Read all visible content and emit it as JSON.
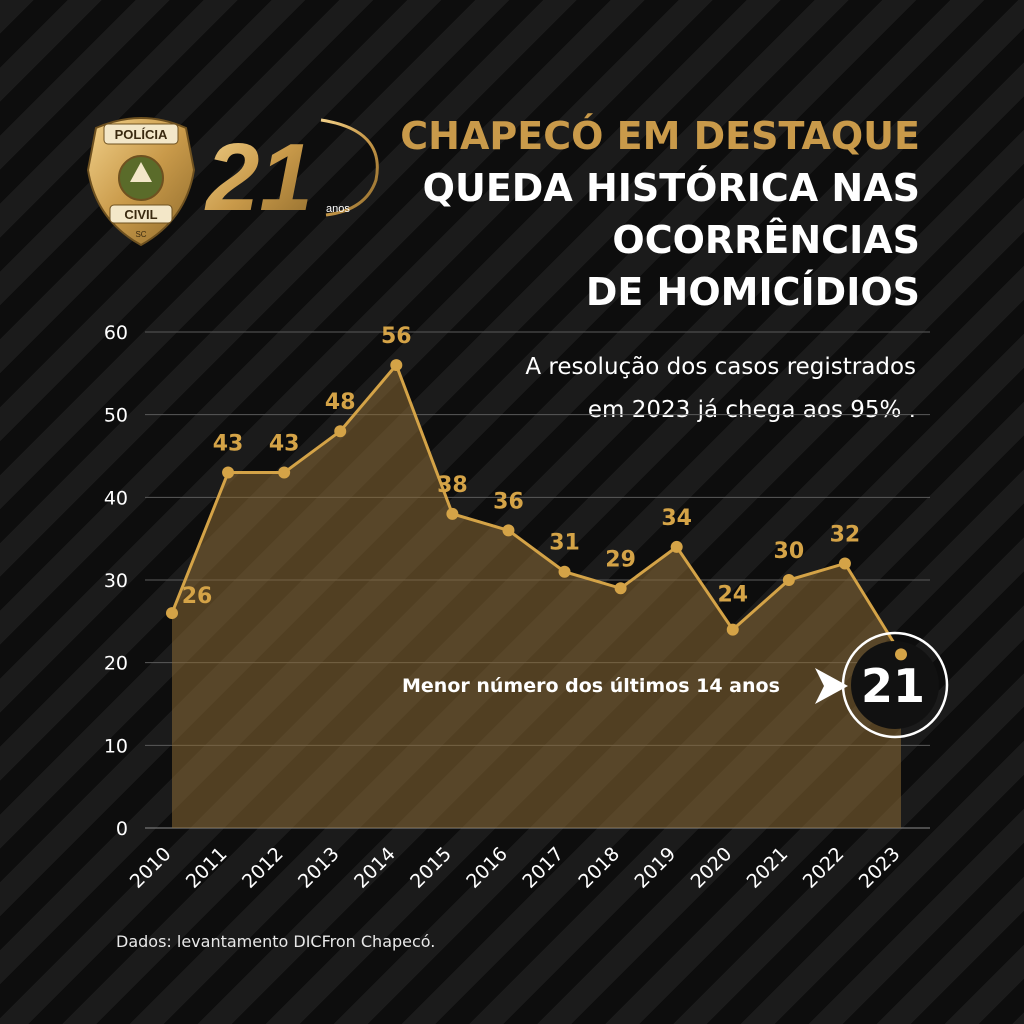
{
  "header": {
    "kicker": "CHAPECÓ EM DESTAQUE",
    "title_lines": [
      "QUEDA HISTÓRICA NAS",
      "OCORRÊNCIAS",
      "DE HOMICÍDIOS"
    ]
  },
  "subtext": "A resolução dos casos registrados em 2023 já chega aos 95% .",
  "logo": {
    "badge_top": "POLÍCIA",
    "badge_bottom": "CIVIL",
    "badge_state": "SC",
    "anniversary_number": "21",
    "anniversary_unit": "anos"
  },
  "callout": {
    "text": "Menor número dos últimos 14 anos",
    "value": "21"
  },
  "footer": "Dados: levantamento DICFron Chapecó.",
  "colors": {
    "accent": "#c99a4a",
    "line": "#d4a347",
    "fill": "#8a6a35",
    "text": "#ffffff"
  },
  "chart_data": {
    "type": "area",
    "x": [
      "2010",
      "2011",
      "2012",
      "2013",
      "2014",
      "2015",
      "2016",
      "2017",
      "2018",
      "2019",
      "2020",
      "2021",
      "2022",
      "2023"
    ],
    "values": [
      26,
      43,
      43,
      48,
      56,
      38,
      36,
      31,
      29,
      34,
      24,
      30,
      32,
      21
    ],
    "data_labels": [
      "26",
      "43",
      "43",
      "48",
      "56",
      "38",
      "36",
      "31",
      "29",
      "34",
      "24",
      "30",
      "32",
      ""
    ],
    "ylim": [
      0,
      60
    ],
    "yticks": [
      0,
      10,
      20,
      30,
      40,
      50,
      60
    ],
    "grid": true,
    "xlabel": "",
    "ylabel": ""
  }
}
